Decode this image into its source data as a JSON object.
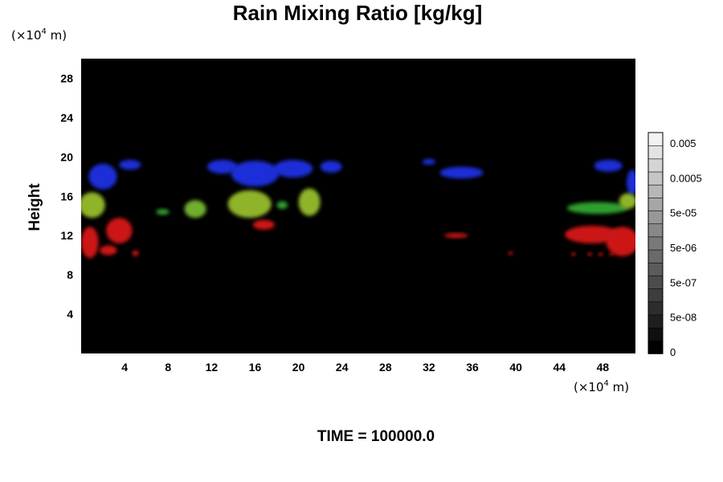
{
  "chart_data": {
    "type": "heatmap",
    "title": "Rain Mixing Ratio [kg/kg]",
    "ylabel": "Height",
    "x_unit": {
      "pre": "(×10",
      "exp": "4",
      "post": " m)"
    },
    "y_unit": {
      "pre": "(×10",
      "exp": "4",
      "post": " m)"
    },
    "xlim": [
      0,
      51
    ],
    "ylim": [
      0,
      30
    ],
    "x_ticks": [
      4,
      8,
      12,
      16,
      20,
      24,
      28,
      32,
      36,
      40,
      44,
      48
    ],
    "y_ticks": [
      4,
      8,
      12,
      16,
      20,
      24,
      28
    ],
    "background_color": "#000000",
    "colorbar": {
      "labels": [
        "0.005",
        "0.0005",
        "5e-05",
        "5e-06",
        "5e-07",
        "5e-08",
        "0"
      ],
      "levels": 17,
      "color_min": "#000000",
      "color_max": "#f2f2f2"
    },
    "regions": [
      {
        "color": "#1e2ed8",
        "x": 2,
        "y": 18.0,
        "rx": 1.3,
        "ry": 1.3
      },
      {
        "color": "#1e2ed8",
        "x": 4.5,
        "y": 19.2,
        "rx": 1.0,
        "ry": 0.5
      },
      {
        "color": "#1e2ed8",
        "x": 13,
        "y": 19.0,
        "rx": 1.4,
        "ry": 0.7
      },
      {
        "color": "#1e2ed8",
        "x": 16,
        "y": 18.3,
        "rx": 2.2,
        "ry": 1.3
      },
      {
        "color": "#1e2ed8",
        "x": 19.5,
        "y": 18.8,
        "rx": 1.8,
        "ry": 0.9
      },
      {
        "color": "#1e2ed8",
        "x": 23,
        "y": 19.0,
        "rx": 1.0,
        "ry": 0.6
      },
      {
        "color": "#1e2ed8",
        "x": 32,
        "y": 19.5,
        "rx": 0.6,
        "ry": 0.3
      },
      {
        "color": "#1e2ed8",
        "x": 35,
        "y": 18.4,
        "rx": 2.0,
        "ry": 0.6
      },
      {
        "color": "#1e2ed8",
        "x": 48.5,
        "y": 19.1,
        "rx": 1.3,
        "ry": 0.6
      },
      {
        "color": "#1e2ed8",
        "x": 50.7,
        "y": 17.4,
        "rx": 0.5,
        "ry": 1.3
      },
      {
        "color": "#8fb42a",
        "x": 1.0,
        "y": 15.1,
        "rx": 1.2,
        "ry": 1.3
      },
      {
        "color": "#2f9f2f",
        "x": 7.5,
        "y": 14.4,
        "rx": 0.6,
        "ry": 0.3
      },
      {
        "color": "#6fae2e",
        "x": 10.5,
        "y": 14.7,
        "rx": 1.0,
        "ry": 0.9
      },
      {
        "color": "#8fb42a",
        "x": 15.5,
        "y": 15.2,
        "rx": 2.0,
        "ry": 1.4
      },
      {
        "color": "#2f9f2f",
        "x": 18.5,
        "y": 15.1,
        "rx": 0.5,
        "ry": 0.4
      },
      {
        "color": "#8fb42a",
        "x": 21.0,
        "y": 15.4,
        "rx": 1.0,
        "ry": 1.4
      },
      {
        "color": "#2f9f2f",
        "x": 47.5,
        "y": 14.8,
        "rx": 2.8,
        "ry": 0.6
      },
      {
        "color": "#8fb42a",
        "x": 50.3,
        "y": 15.5,
        "rx": 0.8,
        "ry": 0.8
      },
      {
        "color": "#cc1414",
        "x": 0.8,
        "y": 11.3,
        "rx": 0.8,
        "ry": 1.6
      },
      {
        "color": "#cc1414",
        "x": 2.5,
        "y": 10.5,
        "rx": 0.8,
        "ry": 0.5
      },
      {
        "color": "#cc1414",
        "x": 3.5,
        "y": 12.5,
        "rx": 1.2,
        "ry": 1.3
      },
      {
        "color": "#cc1414",
        "x": 5.0,
        "y": 10.2,
        "rx": 0.3,
        "ry": 0.3
      },
      {
        "color": "#cc1414",
        "x": 16.8,
        "y": 13.1,
        "rx": 1.0,
        "ry": 0.5
      },
      {
        "color": "#cc1414",
        "x": 34.5,
        "y": 12.0,
        "rx": 1.1,
        "ry": 0.25
      },
      {
        "color": "#cc1414",
        "x": 39.5,
        "y": 10.2,
        "rx": 0.2,
        "ry": 0.2
      },
      {
        "color": "#cc1414",
        "x": 45.3,
        "y": 10.1,
        "rx": 0.2,
        "ry": 0.2
      },
      {
        "color": "#cc1414",
        "x": 46.8,
        "y": 10.1,
        "rx": 0.2,
        "ry": 0.2
      },
      {
        "color": "#cc1414",
        "x": 47.8,
        "y": 10.1,
        "rx": 0.2,
        "ry": 0.2
      },
      {
        "color": "#cc1414",
        "x": 48.8,
        "y": 10.1,
        "rx": 0.2,
        "ry": 0.2
      },
      {
        "color": "#cc1414",
        "x": 47.0,
        "y": 12.1,
        "rx": 2.5,
        "ry": 0.9
      },
      {
        "color": "#cc1414",
        "x": 49.8,
        "y": 11.4,
        "rx": 1.5,
        "ry": 1.5
      }
    ]
  },
  "time_label": "TIME = 100000.0"
}
